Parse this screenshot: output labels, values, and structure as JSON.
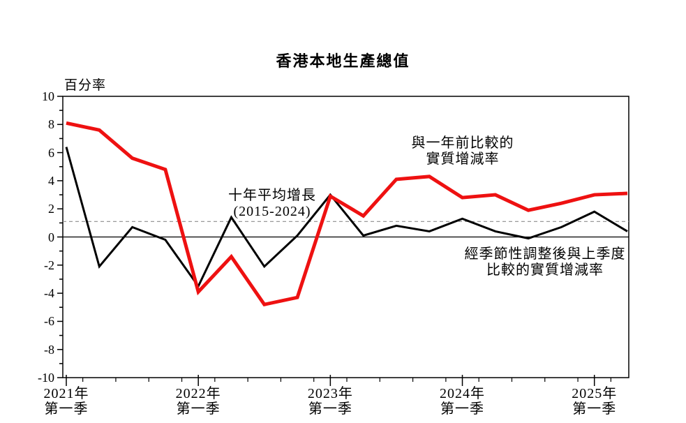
{
  "title": "香港本地生產總值",
  "y_axis": {
    "unit_label": "百分率",
    "min": -10,
    "max": 10,
    "major_step": 2,
    "minor_step": 1,
    "tick_labels": [
      "10",
      "8",
      "6",
      "4",
      "2",
      "0",
      "-2",
      "-4",
      "-6",
      "-8",
      "-10"
    ]
  },
  "x_axis": {
    "tick_labels": [
      {
        "year": "2021年",
        "quarter": "第一季",
        "point_index": 0
      },
      {
        "year": "2022年",
        "quarter": "第一季",
        "point_index": 4
      },
      {
        "year": "2023年",
        "quarter": "第一季",
        "point_index": 8
      },
      {
        "year": "2024年",
        "quarter": "第一季",
        "point_index": 12
      },
      {
        "year": "2025年",
        "quarter": "第一季",
        "point_index": 16
      }
    ]
  },
  "annotations": {
    "yoy": {
      "line1": "與一年前比較的",
      "line2": "實質增減率"
    },
    "avg": {
      "line1": "十年平均增長",
      "line2": "(2015-2024)"
    },
    "qoq": {
      "line1": "經季節性調整後與上季度",
      "line2": "比較的實質增減率"
    }
  },
  "colors": {
    "yoy_line": "#ee1111",
    "qoq_line": "#000000",
    "avg_dashed_line": "#8c8c8c",
    "axis": "#000000",
    "background": "#ffffff"
  },
  "chart_data": {
    "type": "line",
    "title": "香港本地生產總值",
    "ylabel": "百分率",
    "ylim": [
      -10,
      10
    ],
    "grid": false,
    "legend_position": "annotations-on-chart",
    "x": [
      "2021Q1",
      "2021Q2",
      "2021Q3",
      "2021Q4",
      "2022Q1",
      "2022Q2",
      "2022Q3",
      "2022Q4",
      "2023Q1",
      "2023Q2",
      "2023Q3",
      "2023Q4",
      "2024Q1",
      "2024Q2",
      "2024Q3",
      "2024Q4",
      "2025Q1",
      "2025Q2"
    ],
    "series": [
      {
        "name": "與一年前比較的實質增減率",
        "color": "#ee1111",
        "values": [
          8.1,
          7.6,
          5.6,
          4.8,
          -3.9,
          -1.4,
          -4.8,
          -4.3,
          2.9,
          1.5,
          4.1,
          4.3,
          2.8,
          3.0,
          1.9,
          2.4,
          3.0,
          3.1
        ]
      },
      {
        "name": "經季節性調整後與上季度比較的實質增減率",
        "color": "#000000",
        "values": [
          6.4,
          -2.1,
          0.7,
          -0.2,
          -3.5,
          1.4,
          -2.1,
          0.1,
          3.0,
          0.1,
          0.8,
          0.4,
          1.3,
          0.4,
          -0.1,
          0.7,
          1.8,
          0.4
        ]
      }
    ],
    "reference_line": {
      "label": "十年平均增長 (2015-2024)",
      "value": 1.1,
      "style": "dashed"
    }
  }
}
